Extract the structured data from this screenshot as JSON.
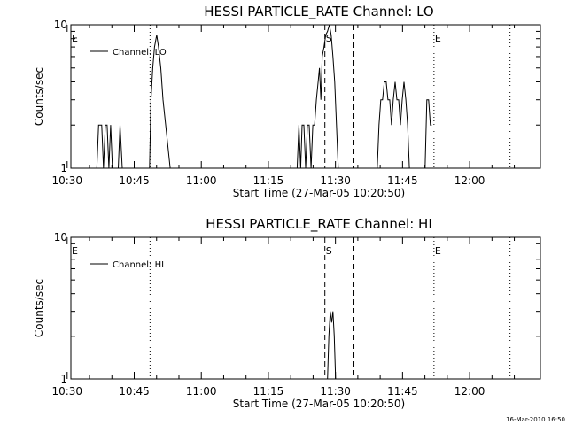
{
  "chart_data": [
    {
      "type": "line",
      "title": "HESSI PARTICLE_RATE Channel: LO",
      "xlabel": "Start Time (27-Mar-05 10:20:50)",
      "ylabel": "Counts/sec",
      "x_ticks": [
        "10:30",
        "10:45",
        "11:00",
        "11:15",
        "11:30",
        "11:45",
        "12:00"
      ],
      "y_ticks": [
        "1",
        "10"
      ],
      "y_scale": "log",
      "ylim": [
        1,
        10
      ],
      "xlim_minutes": [
        10.0,
        115.0
      ],
      "legend": "Channel: LO",
      "markers": [
        {
          "label": "E",
          "minute": 10.0,
          "style": "none"
        },
        {
          "label": "",
          "minute": 27.7,
          "style": "dotted"
        },
        {
          "label": "S",
          "minute": 66.8,
          "style": "dashed"
        },
        {
          "label": "",
          "minute": 73.3,
          "style": "dashed"
        },
        {
          "label": "E",
          "minute": 91.2,
          "style": "dotted"
        },
        {
          "label": "",
          "minute": 108.2,
          "style": "dotted"
        }
      ],
      "series": [
        {
          "segments": [
            [
              [
                15.8,
                1
              ],
              [
                16.2,
                2
              ],
              [
                16.9,
                2
              ],
              [
                17.3,
                1
              ],
              [
                17.7,
                2
              ],
              [
                18.1,
                2
              ],
              [
                18.5,
                1
              ],
              [
                18.9,
                2
              ],
              [
                19.3,
                1
              ]
            ],
            [
              [
                20.6,
                1
              ],
              [
                21.0,
                2
              ],
              [
                21.5,
                1
              ]
            ],
            [
              [
                27.6,
                1
              ],
              [
                27.9,
                3
              ],
              [
                28.3,
                5
              ],
              [
                28.7,
                7
              ],
              [
                29.2,
                8.5
              ],
              [
                29.6,
                7
              ],
              [
                30.1,
                5
              ],
              [
                30.6,
                3
              ],
              [
                31.2,
                2
              ],
              [
                32.2,
                1
              ],
              [
                32.8,
                1
              ],
              [
                33.3,
                1
              ]
            ],
            [
              [
                60.6,
                1
              ],
              [
                61.0,
                2
              ],
              [
                61.4,
                1
              ],
              [
                61.7,
                2
              ],
              [
                62.1,
                2
              ],
              [
                62.5,
                1
              ],
              [
                62.9,
                2
              ],
              [
                63.3,
                2
              ],
              [
                63.7,
                1
              ],
              [
                64.1,
                2
              ],
              [
                64.5,
                2
              ],
              [
                64.9,
                3
              ],
              [
                65.3,
                4
              ],
              [
                65.6,
                5
              ],
              [
                65.9,
                3
              ],
              [
                66.2,
                6
              ],
              [
                66.6,
                7
              ],
              [
                67.0,
                8.5
              ],
              [
                67.4,
                9
              ],
              [
                67.8,
                10
              ],
              [
                68.2,
                8.5
              ],
              [
                68.6,
                6
              ],
              [
                69.0,
                4
              ],
              [
                69.4,
                2
              ],
              [
                69.8,
                1
              ]
            ],
            [
              [
                78.5,
                1
              ],
              [
                78.9,
                2
              ],
              [
                79.3,
                3
              ],
              [
                79.7,
                3
              ],
              [
                80.1,
                4
              ],
              [
                80.5,
                4
              ],
              [
                80.9,
                3
              ],
              [
                81.3,
                3
              ],
              [
                81.7,
                2
              ],
              [
                82.1,
                3
              ],
              [
                82.5,
                4
              ],
              [
                82.9,
                3
              ],
              [
                83.3,
                3
              ],
              [
                83.7,
                2
              ],
              [
                84.1,
                3
              ],
              [
                84.5,
                4
              ],
              [
                84.9,
                3
              ],
              [
                85.3,
                2
              ],
              [
                85.7,
                1
              ]
            ],
            [
              [
                89.2,
                1
              ],
              [
                89.6,
                3
              ],
              [
                90.0,
                3
              ],
              [
                90.4,
                2
              ],
              [
                90.7,
                2
              ]
            ]
          ]
        }
      ]
    },
    {
      "type": "line",
      "title": "HESSI PARTICLE_RATE Channel: HI",
      "xlabel": "Start Time (27-Mar-05 10:20:50)",
      "ylabel": "Counts/sec",
      "x_ticks": [
        "10:30",
        "10:45",
        "11:00",
        "11:15",
        "11:30",
        "11:45",
        "12:00"
      ],
      "y_ticks": [
        "1",
        "10"
      ],
      "y_scale": "log",
      "ylim": [
        1,
        10
      ],
      "xlim_minutes": [
        10.0,
        115.0
      ],
      "legend": "Channel: HI",
      "markers": [
        {
          "label": "E",
          "minute": 10.0,
          "style": "none"
        },
        {
          "label": "",
          "minute": 27.7,
          "style": "dotted"
        },
        {
          "label": "S",
          "minute": 66.8,
          "style": "dashed"
        },
        {
          "label": "",
          "minute": 73.3,
          "style": "dashed"
        },
        {
          "label": "E",
          "minute": 91.2,
          "style": "dotted"
        },
        {
          "label": "",
          "minute": 108.2,
          "style": "dotted"
        }
      ],
      "series": [
        {
          "segments": [
            [
              [
                67.4,
                1
              ],
              [
                67.7,
                2
              ],
              [
                68.0,
                3
              ],
              [
                68.3,
                2.5
              ],
              [
                68.6,
                3
              ],
              [
                68.9,
                2
              ],
              [
                69.2,
                1
              ]
            ]
          ]
        }
      ]
    }
  ],
  "footer_stamp": "16-Mar-2010 16:50"
}
